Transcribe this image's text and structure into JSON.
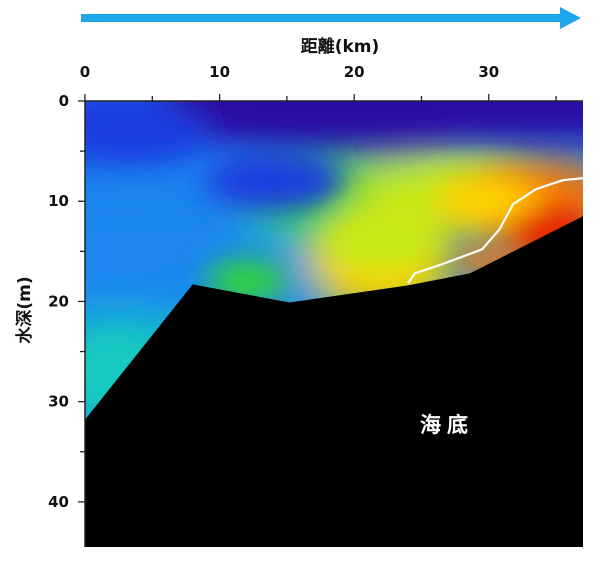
{
  "chart_data": {
    "type": "heatmap",
    "title": "",
    "xlabel": "距離(km)",
    "ylabel": "水深(m)",
    "x_ticks": [
      "0",
      "10",
      "20",
      "30"
    ],
    "y_ticks": [
      "0",
      "10",
      "20",
      "30",
      "40"
    ],
    "xlim": [
      0,
      37
    ],
    "ylim": [
      0,
      44.5
    ],
    "x_axis_position": "top",
    "y_axis_inverted": true,
    "direction_arrow": {
      "color": "#1aa6e8",
      "direction": "right"
    },
    "seabed": {
      "label": "海底",
      "color": "#000000",
      "profile": [
        {
          "x": 0,
          "depth": 31.8
        },
        {
          "x": 8,
          "depth": 18.3
        },
        {
          "x": 15.2,
          "depth": 20.1
        },
        {
          "x": 24,
          "depth": 18.4
        },
        {
          "x": 28.6,
          "depth": 17.2
        },
        {
          "x": 37,
          "depth": 11.5
        }
      ]
    },
    "contour": {
      "color": "#ffffff",
      "points": [
        {
          "x": 24,
          "depth": 18.2
        },
        {
          "x": 24.5,
          "depth": 17.2
        },
        {
          "x": 26.5,
          "depth": 16.3
        },
        {
          "x": 29.5,
          "depth": 14.8
        },
        {
          "x": 30.8,
          "depth": 12.8
        },
        {
          "x": 31.8,
          "depth": 10.3
        },
        {
          "x": 33.5,
          "depth": 8.8
        },
        {
          "x": 35.5,
          "depth": 7.9
        },
        {
          "x": 37,
          "depth": 7.7
        }
      ]
    },
    "colorscale": [
      "#2a0fa6",
      "#1d3de0",
      "#1a86f0",
      "#16c9c0",
      "#33d43a",
      "#c4ea12",
      "#ffd400",
      "#ff7a00",
      "#e62000"
    ],
    "field_samples": [
      {
        "x": 2,
        "depth": 2,
        "level": 0.15
      },
      {
        "x": 20,
        "depth": 1,
        "level": 0.0
      },
      {
        "x": 2,
        "depth": 15,
        "level": 0.28
      },
      {
        "x": 3,
        "depth": 26,
        "level": 0.38
      },
      {
        "x": 15,
        "depth": 13,
        "level": 0.25
      },
      {
        "x": 20,
        "depth": 10,
        "level": 0.52
      },
      {
        "x": 28,
        "depth": 9,
        "level": 0.6
      },
      {
        "x": 22,
        "depth": 17,
        "level": 0.72
      },
      {
        "x": 34,
        "depth": 10,
        "level": 0.92
      }
    ]
  }
}
